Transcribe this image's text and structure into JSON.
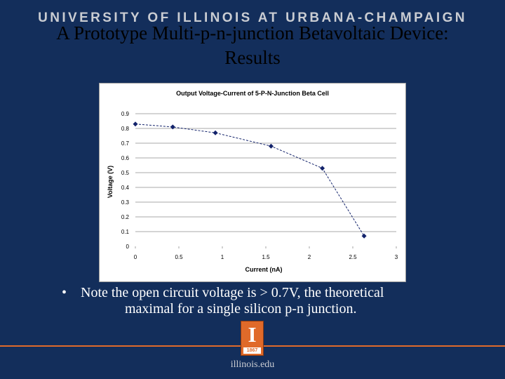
{
  "header": {
    "university": "UNIVERSITY OF ILLINOIS AT URBANA-CHAMPAIGN"
  },
  "slide": {
    "title_line1": "A Prototype Multi-p-n-junction Betavoltaic Device:",
    "title_line2": "Results",
    "bullet_marker": "•",
    "bullet_line1": "Note the open circuit voltage is > 0.7V, the theoretical",
    "bullet_line2": "maximal for a single silicon p-n junction."
  },
  "footer": {
    "logo_letter": "I",
    "logo_year": "1867",
    "domain": "illinois.edu"
  },
  "colors": {
    "background": "#132e5b",
    "accent": "#e06a2a",
    "series": "#13236b"
  },
  "chart_data": {
    "type": "line",
    "title": "Output Voltage-Current of 5-P-N-Junction Beta Cell",
    "xlabel": "Current (nA)",
    "ylabel": "Voltage (V)",
    "xlim": [
      0,
      3
    ],
    "ylim": [
      0,
      0.9
    ],
    "xticks": [
      "0",
      "0.5",
      "1",
      "1.5",
      "2",
      "2.5",
      "3"
    ],
    "yticks": [
      "0",
      "0.1",
      "0.2",
      "0.3",
      "0.4",
      "0.5",
      "0.6",
      "0.7",
      "0.8",
      "0.9"
    ],
    "grid": true,
    "series": [
      {
        "x": [
          0,
          0.43,
          0.92,
          1.56,
          2.15,
          2.63
        ],
        "y": [
          0.83,
          0.81,
          0.77,
          0.68,
          0.53,
          0.07
        ]
      }
    ]
  }
}
